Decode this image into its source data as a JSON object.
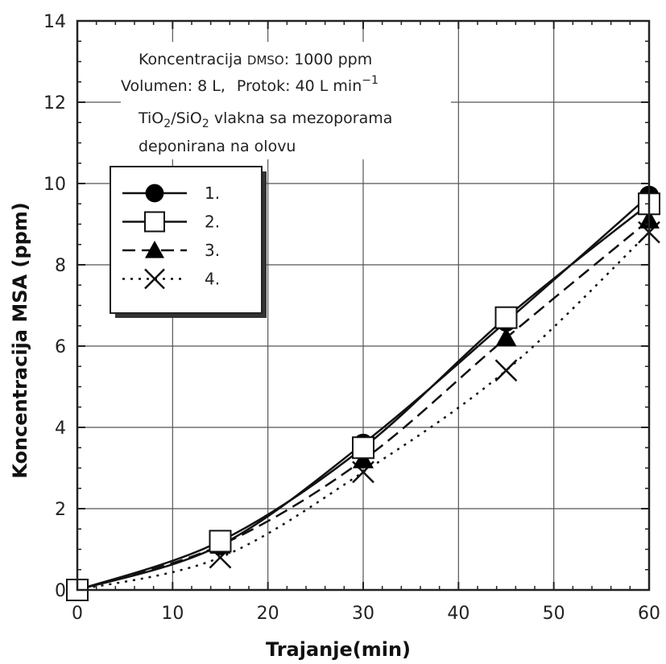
{
  "chart_data": {
    "type": "line",
    "xlabel": "Trajanje(min)",
    "ylabel": "Koncentracija MSA (ppm)",
    "xlim": [
      0,
      60
    ],
    "ylim": [
      0,
      14
    ],
    "xticks": [
      0,
      10,
      20,
      30,
      40,
      50,
      60
    ],
    "yticks": [
      0,
      2,
      4,
      6,
      8,
      10,
      12,
      14
    ],
    "grid": true,
    "x": [
      0,
      15,
      30,
      45,
      60
    ],
    "series": [
      {
        "name": "1.",
        "marker": "circle",
        "line": "solid",
        "values": [
          0,
          1.1,
          3.6,
          6.6,
          9.7
        ]
      },
      {
        "name": "2.",
        "marker": "open-square",
        "line": "solid",
        "values": [
          0,
          1.2,
          3.5,
          6.7,
          9.5
        ]
      },
      {
        "name": "3.",
        "marker": "triangle",
        "line": "dashed",
        "values": [
          0,
          1.1,
          3.2,
          6.2,
          9.1
        ]
      },
      {
        "name": "4.",
        "marker": "x",
        "line": "dotted",
        "values": [
          0,
          0.8,
          2.9,
          5.4,
          8.8
        ]
      }
    ],
    "annotations": {
      "line1_prefix": "Koncentracija",
      "line1_dmso": "DMSO",
      "line1_suffix": ": 1000 ppm",
      "line2_volume": "Volumen: 8 L,",
      "line2_flow": "Protok:  40 L min",
      "line2_flow_sup": "−1",
      "line3_a": "TiO",
      "line3_sub1": "2",
      "line3_b": "/SiO",
      "line3_sub2": "2",
      "line3_c": " vlakna sa mezoporama",
      "line4": "deponirana na olovu"
    },
    "legend_position": "upper-left"
  }
}
